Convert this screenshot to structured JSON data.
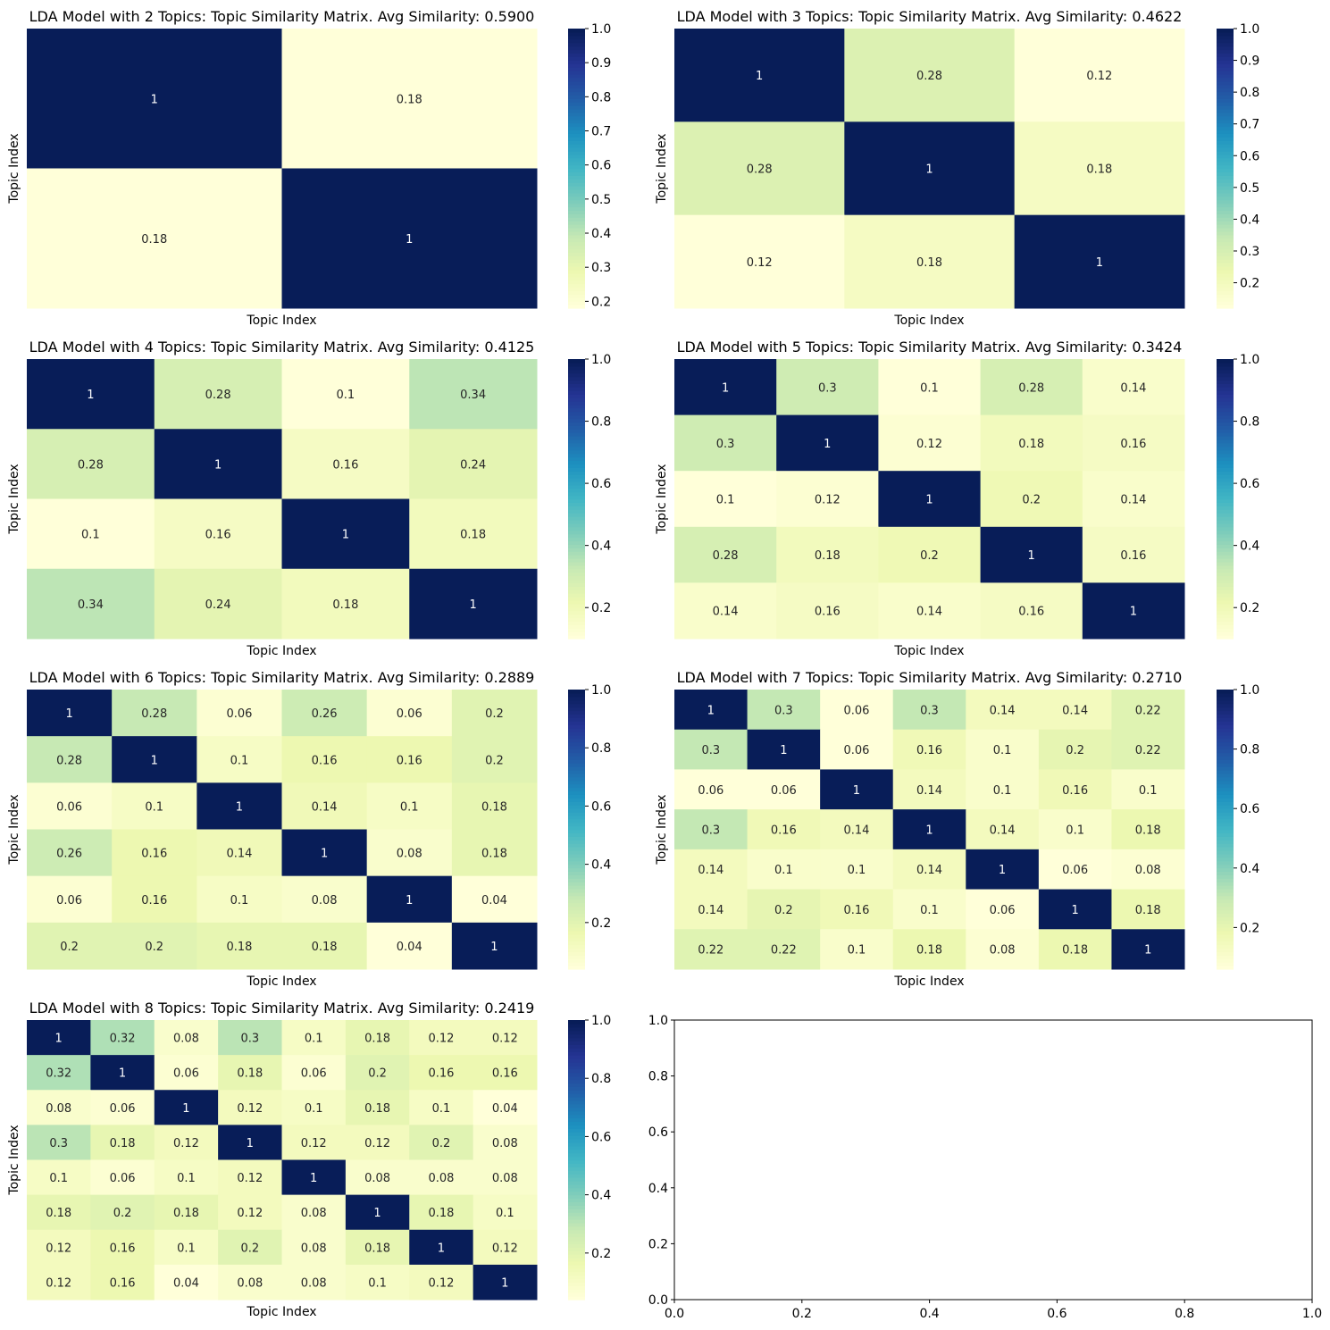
{
  "chart_data": [
    {
      "type": "heatmap",
      "title": "LDA Model with 2 Topics: Topic Similarity Matrix. Avg Similarity: 0.5900",
      "xlabel": "Topic Index",
      "ylabel": "Topic Index",
      "colormap": "YlGnBu",
      "vmin": 0.18,
      "vmax": 1.0,
      "colorbar_ticks": [
        "0.2",
        "0.3",
        "0.4",
        "0.5",
        "0.6",
        "0.7",
        "0.8",
        "0.9",
        "1.0"
      ],
      "matrix": [
        [
          1,
          0.18
        ],
        [
          0.18,
          1
        ]
      ]
    },
    {
      "type": "heatmap",
      "title": "LDA Model with 3 Topics: Topic Similarity Matrix. Avg Similarity: 0.4622",
      "xlabel": "Topic Index",
      "ylabel": "Topic Index",
      "colormap": "YlGnBu",
      "vmin": 0.12,
      "vmax": 1.0,
      "colorbar_ticks": [
        "0.2",
        "0.3",
        "0.4",
        "0.5",
        "0.6",
        "0.7",
        "0.8",
        "0.9",
        "1.0"
      ],
      "matrix": [
        [
          1,
          0.28,
          0.12
        ],
        [
          0.28,
          1,
          0.18
        ],
        [
          0.12,
          0.18,
          1
        ]
      ]
    },
    {
      "type": "heatmap",
      "title": "LDA Model with 4 Topics: Topic Similarity Matrix. Avg Similarity: 0.4125",
      "xlabel": "Topic Index",
      "ylabel": "Topic Index",
      "colormap": "YlGnBu",
      "vmin": 0.1,
      "vmax": 1.0,
      "colorbar_ticks": [
        "0.2",
        "0.4",
        "0.6",
        "0.8",
        "1.0"
      ],
      "matrix": [
        [
          1,
          0.28,
          0.1,
          0.34
        ],
        [
          0.28,
          1,
          0.16,
          0.24
        ],
        [
          0.1,
          0.16,
          1,
          0.18
        ],
        [
          0.34,
          0.24,
          0.18,
          1
        ]
      ]
    },
    {
      "type": "heatmap",
      "title": "LDA Model with 5 Topics: Topic Similarity Matrix. Avg Similarity: 0.3424",
      "xlabel": "Topic Index",
      "ylabel": "Topic Index",
      "colormap": "YlGnBu",
      "vmin": 0.1,
      "vmax": 1.0,
      "colorbar_ticks": [
        "0.2",
        "0.4",
        "0.6",
        "0.8",
        "1.0"
      ],
      "matrix": [
        [
          1,
          0.3,
          0.1,
          0.28,
          0.14
        ],
        [
          0.3,
          1,
          0.12,
          0.18,
          0.16
        ],
        [
          0.1,
          0.12,
          1,
          0.2,
          0.14
        ],
        [
          0.28,
          0.18,
          0.2,
          1,
          0.16
        ],
        [
          0.14,
          0.16,
          0.14,
          0.16,
          1
        ]
      ]
    },
    {
      "type": "heatmap",
      "title": "LDA Model with 6 Topics: Topic Similarity Matrix. Avg Similarity: 0.2889",
      "xlabel": "Topic Index",
      "ylabel": "Topic Index",
      "colormap": "YlGnBu",
      "vmin": 0.04,
      "vmax": 1.0,
      "colorbar_ticks": [
        "0.2",
        "0.4",
        "0.6",
        "0.8",
        "1.0"
      ],
      "matrix": [
        [
          1,
          0.28,
          0.06,
          0.26,
          0.06,
          0.2
        ],
        [
          0.28,
          1,
          0.1,
          0.16,
          0.16,
          0.2
        ],
        [
          0.06,
          0.1,
          1,
          0.14,
          0.1,
          0.18
        ],
        [
          0.26,
          0.16,
          0.14,
          1,
          0.08,
          0.18
        ],
        [
          0.06,
          0.16,
          0.1,
          0.08,
          1,
          0.04
        ],
        [
          0.2,
          0.2,
          0.18,
          0.18,
          0.04,
          1
        ]
      ]
    },
    {
      "type": "heatmap",
      "title": "LDA Model with 7 Topics: Topic Similarity Matrix. Avg Similarity: 0.2710",
      "xlabel": "Topic Index",
      "ylabel": "Topic Index",
      "colormap": "YlGnBu",
      "vmin": 0.06,
      "vmax": 1.0,
      "colorbar_ticks": [
        "0.2",
        "0.4",
        "0.6",
        "0.8",
        "1.0"
      ],
      "matrix": [
        [
          1,
          0.3,
          0.06,
          0.3,
          0.14,
          0.14,
          0.22
        ],
        [
          0.3,
          1,
          0.06,
          0.16,
          0.1,
          0.2,
          0.22
        ],
        [
          0.06,
          0.06,
          1,
          0.14,
          0.1,
          0.16,
          0.1
        ],
        [
          0.3,
          0.16,
          0.14,
          1,
          0.14,
          0.1,
          0.18
        ],
        [
          0.14,
          0.1,
          0.1,
          0.14,
          1,
          0.06,
          0.08
        ],
        [
          0.14,
          0.2,
          0.16,
          0.1,
          0.06,
          1,
          0.18
        ],
        [
          0.22,
          0.22,
          0.1,
          0.18,
          0.08,
          0.18,
          1
        ]
      ]
    },
    {
      "type": "heatmap",
      "title": "LDA Model with 8 Topics: Topic Similarity Matrix. Avg Similarity: 0.2419",
      "xlabel": "Topic Index",
      "ylabel": "Topic Index",
      "colormap": "YlGnBu",
      "vmin": 0.04,
      "vmax": 1.0,
      "colorbar_ticks": [
        "0.2",
        "0.4",
        "0.6",
        "0.8",
        "1.0"
      ],
      "matrix": [
        [
          1,
          0.32,
          0.08,
          0.3,
          0.1,
          0.18,
          0.12,
          0.12
        ],
        [
          0.32,
          1,
          0.06,
          0.18,
          0.06,
          0.2,
          0.16,
          0.16
        ],
        [
          0.08,
          0.06,
          1,
          0.12,
          0.1,
          0.18,
          0.1,
          0.04
        ],
        [
          0.3,
          0.18,
          0.12,
          1,
          0.12,
          0.12,
          0.2,
          0.08
        ],
        [
          0.1,
          0.06,
          0.1,
          0.12,
          1,
          0.08,
          0.08,
          0.08
        ],
        [
          0.18,
          0.2,
          0.18,
          0.12,
          0.08,
          1,
          0.18,
          0.1
        ],
        [
          0.12,
          0.16,
          0.1,
          0.2,
          0.08,
          0.18,
          1,
          0.12
        ],
        [
          0.12,
          0.16,
          0.04,
          0.08,
          0.08,
          0.1,
          0.12,
          1
        ]
      ]
    },
    {
      "type": "empty_axes",
      "xlim": [
        0,
        1
      ],
      "ylim": [
        0,
        1
      ],
      "xticks": [
        "0.0",
        "0.2",
        "0.4",
        "0.6",
        "0.8",
        "1.0"
      ],
      "yticks": [
        "0.0",
        "0.2",
        "0.4",
        "0.6",
        "0.8",
        "1.0"
      ]
    }
  ]
}
